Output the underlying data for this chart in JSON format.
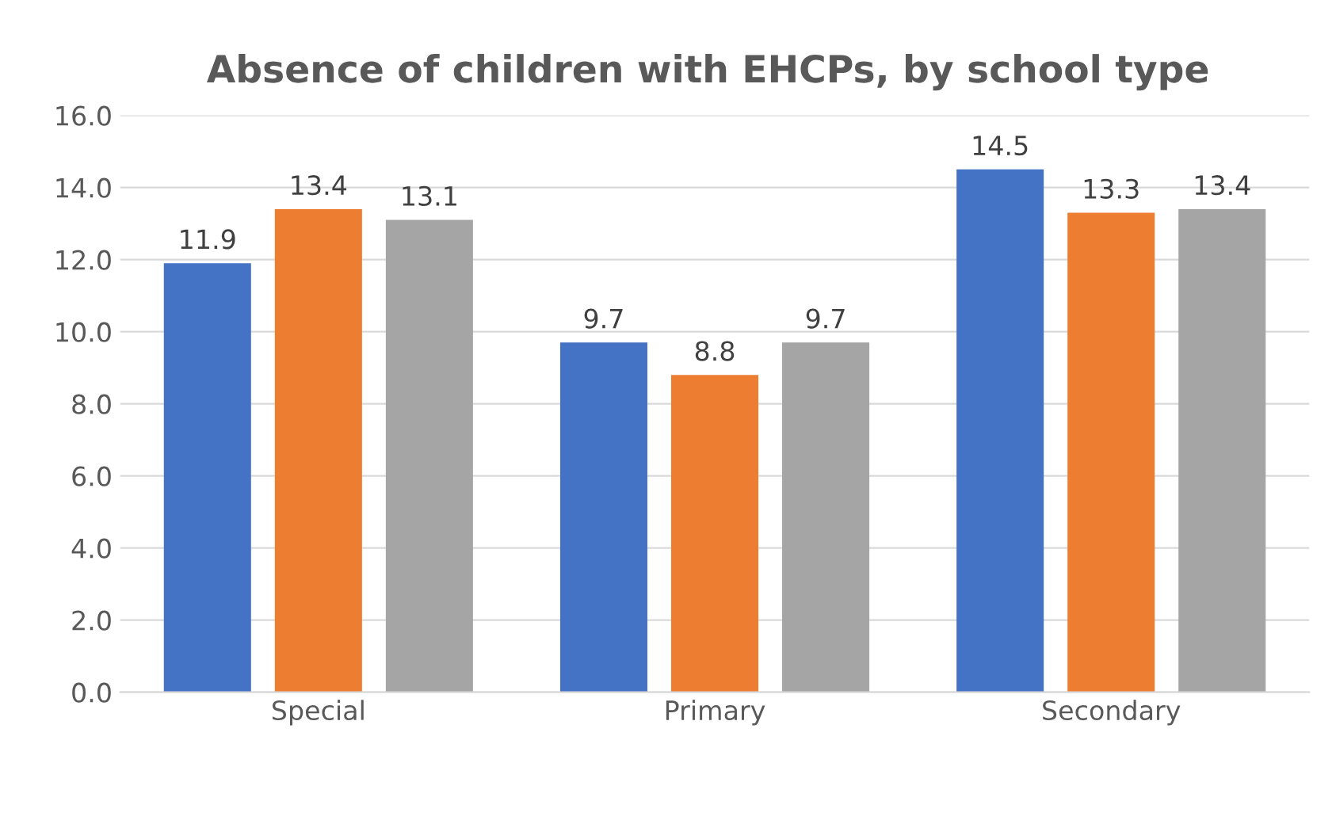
{
  "chart_data": {
    "type": "bar",
    "title": "Absence of children with EHCPs, by school type",
    "categories": [
      "Special",
      "Primary",
      "Secondary"
    ],
    "series": [
      {
        "color": "#4472c4",
        "values": [
          11.9,
          9.7,
          14.5
        ]
      },
      {
        "color": "#ed7d31",
        "values": [
          13.4,
          8.8,
          13.3
        ]
      },
      {
        "color": "#a5a5a5",
        "values": [
          13.1,
          9.7,
          13.4
        ]
      }
    ],
    "ylim": [
      0,
      16
    ],
    "yticks": [
      {
        "value": 0,
        "label": "0.0"
      },
      {
        "value": 2,
        "label": "2.0"
      },
      {
        "value": 4,
        "label": "4.0"
      },
      {
        "value": 6,
        "label": "6.0"
      },
      {
        "value": 8,
        "label": "8.0"
      },
      {
        "value": 10,
        "label": "10.0"
      },
      {
        "value": 12,
        "label": "12.0"
      },
      {
        "value": 14,
        "label": "14.0"
      },
      {
        "value": 16,
        "label": "16.0"
      }
    ],
    "grid": "y",
    "data_labels": true,
    "legend": false
  }
}
